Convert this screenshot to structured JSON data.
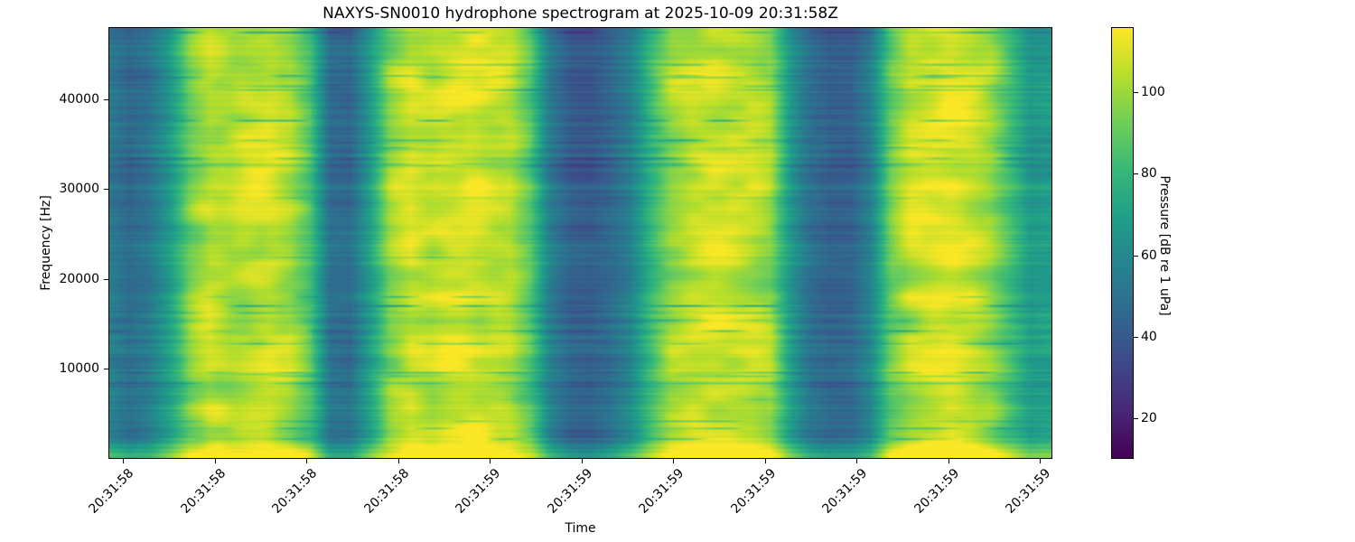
{
  "figure": {
    "title": "NAXYS-SN0010 hydrophone spectrogram at 2025-10-09 20:31:58Z",
    "background_color": "#ffffff"
  },
  "chart_data": {
    "type": "heatmap",
    "subtype": "spectrogram",
    "title": "NAXYS-SN0010 hydrophone spectrogram at 2025-10-09 20:31:58Z",
    "xlabel": "Time",
    "ylabel": "Frequency [Hz]",
    "x_tick_labels": [
      "20:31:58",
      "20:31:58",
      "20:31:58",
      "20:31:58",
      "20:31:59",
      "20:31:59",
      "20:31:59",
      "20:31:59",
      "20:31:59",
      "20:31:59",
      "20:31:59"
    ],
    "x_tick_rotation_deg": 45,
    "y_ticks": [
      10000,
      20000,
      30000,
      40000
    ],
    "ylim": [
      0,
      48000
    ],
    "grid": false,
    "colormap": "viridis",
    "colormap_stops": [
      "#440154",
      "#482878",
      "#3e4989",
      "#31688e",
      "#26828e",
      "#1f9e89",
      "#35b779",
      "#6ece58",
      "#b5de2b",
      "#fde725"
    ],
    "colorbar": {
      "label": "Pressure [dB re 1 uPa]",
      "ticks": [
        20,
        40,
        60,
        80,
        100
      ],
      "vmin": 10,
      "vmax": 116,
      "position": "right"
    },
    "time_envelope_db": [
      58,
      50,
      56,
      72,
      95,
      106,
      104,
      108,
      110,
      104,
      88,
      52,
      50,
      72,
      98,
      108,
      104,
      108,
      110,
      107,
      104,
      88,
      58,
      46,
      44,
      50,
      60,
      82,
      100,
      106,
      108,
      107,
      104,
      98,
      70,
      52,
      46,
      47,
      60,
      92,
      106,
      108,
      110,
      106,
      100,
      85,
      70,
      72
    ],
    "texture": {
      "seed": 7,
      "blob_amp_db": 9,
      "stripe_amp_db": 6.5,
      "dark_line_depth_db": 26,
      "bottom_boost_db": 26
    }
  }
}
